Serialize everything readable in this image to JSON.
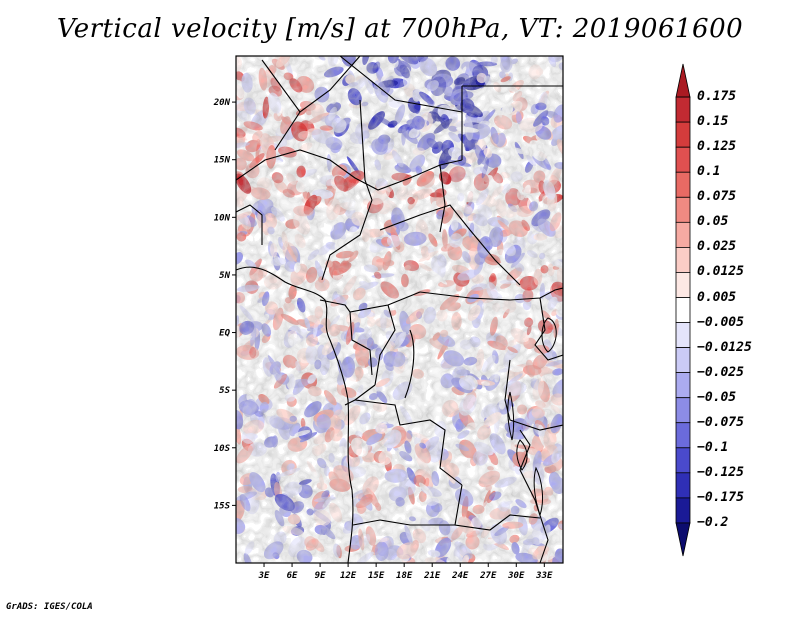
{
  "title": "Vertical velocity [m/s] at 700hPa, VT: 2019061600",
  "credit": "GrADS: IGES/COLA",
  "map": {
    "lon_range": [
      0,
      35
    ],
    "lat_range": [
      -20,
      24
    ],
    "lon_ticks": [
      "3E",
      "6E",
      "9E",
      "12E",
      "15E",
      "18E",
      "21E",
      "24E",
      "27E",
      "30E",
      "33E"
    ],
    "lat_ticks": [
      "20N",
      "15N",
      "10N",
      "5N",
      "EQ",
      "5S",
      "10S",
      "15S"
    ],
    "field": "vertical velocity",
    "level": "700hPa"
  },
  "colorbar": {
    "orientation": "vertical",
    "arrows": "both",
    "levels": [
      "0.175",
      "0.15",
      "0.125",
      "0.1",
      "0.075",
      "0.05",
      "0.025",
      "0.0125",
      "0.005",
      "−0.005",
      "−0.0125",
      "−0.025",
      "−0.05",
      "−0.075",
      "−0.1",
      "−0.125",
      "−0.175",
      "−0.2"
    ],
    "colors": [
      "#aa1a22",
      "#c22a32",
      "#d43c3c",
      "#e05050",
      "#e86a64",
      "#f08a82",
      "#f6aaa2",
      "#fbcdc6",
      "#fde8e4",
      "#ffffff",
      "#e4e4fb",
      "#cbcbf6",
      "#ababf0",
      "#8c8ce6",
      "#6b6bdb",
      "#4a4acc",
      "#2f2fb6",
      "#1a1a96",
      "#0c0c6e"
    ]
  }
}
